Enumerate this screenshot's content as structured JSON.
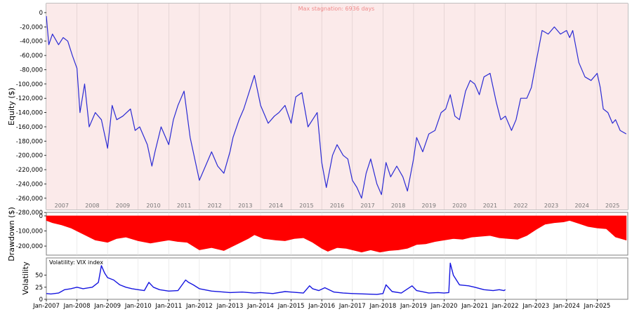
{
  "colors": {
    "equity_line": "#2b2bd4",
    "equity_bg": "#fbeaea",
    "drawdown_fill": "#ff0000",
    "volatility_line": "#1515e0",
    "grid": "#d9c9c9",
    "annotation": "#f08a8a",
    "frame": "#7f7f7f"
  },
  "chart_data": [
    {
      "type": "line",
      "ylabel": "Equity ($)",
      "annotation": "Max stagnation: 6936 days",
      "xlim": [
        2007.0,
        2026.0
      ],
      "ylim": [
        -280000,
        0
      ],
      "yticks": [
        0,
        -20000,
        -40000,
        -60000,
        -80000,
        -100000,
        -120000,
        -140000,
        -160000,
        -180000,
        -200000,
        -220000,
        -240000,
        -260000,
        -280000
      ],
      "ytick_labels": [
        "0",
        "-20,000",
        "-40,000",
        "-60,000",
        "-80,000",
        "-100,000",
        "-120,000",
        "-140,000",
        "-160,000",
        "-180,000",
        "-200,000",
        "-220,000",
        "-240,000",
        "-260,000",
        "-280,000"
      ],
      "year_labels": [
        "2007",
        "2008",
        "2009",
        "2010",
        "2011",
        "2012",
        "2013",
        "2014",
        "2015",
        "2016",
        "2017",
        "2018",
        "2019",
        "2020",
        "2021",
        "2022",
        "2023",
        "2024",
        "2025"
      ],
      "series": [
        {
          "x": [
            2007.0,
            2007.08,
            2007.2,
            2007.4,
            2007.55,
            2007.7,
            2007.85,
            2008.0,
            2008.1,
            2008.25,
            2008.4,
            2008.6,
            2008.8,
            2009.0,
            2009.15,
            2009.3,
            2009.5,
            2009.75,
            2009.9,
            2010.05,
            2010.3,
            2010.45,
            2010.55,
            2010.75,
            2011.0,
            2011.15,
            2011.3,
            2011.5,
            2011.7,
            2012.0,
            2012.2,
            2012.4,
            2012.6,
            2012.8,
            2013.0,
            2013.1,
            2013.3,
            2013.45,
            2013.6,
            2013.8,
            2014.0,
            2014.25,
            2014.45,
            2014.6,
            2014.8,
            2015.0,
            2015.15,
            2015.35,
            2015.55,
            2015.7,
            2015.85,
            2016.0,
            2016.15,
            2016.35,
            2016.5,
            2016.7,
            2016.85,
            2017.0,
            2017.15,
            2017.3,
            2017.45,
            2017.6,
            2017.8,
            2017.95,
            2018.1,
            2018.25,
            2018.45,
            2018.65,
            2018.8,
            2019.0,
            2019.1,
            2019.3,
            2019.5,
            2019.7,
            2019.9,
            2020.05,
            2020.2,
            2020.35,
            2020.5,
            2020.7,
            2020.85,
            2021.0,
            2021.15,
            2021.3,
            2021.5,
            2021.7,
            2021.85,
            2022.0,
            2022.2,
            2022.35,
            2022.5,
            2022.7,
            2022.85,
            2023.0,
            2023.2,
            2023.4,
            2023.6,
            2023.8,
            2024.0,
            2024.1,
            2024.2,
            2024.4,
            2024.6,
            2024.8,
            2025.0,
            2025.1,
            2025.2,
            2025.35,
            2025.5,
            2025.6,
            2025.75,
            2025.95
          ],
          "y": [
            -5000,
            -45000,
            -30000,
            -45000,
            -35000,
            -40000,
            -60000,
            -78000,
            -140000,
            -100000,
            -160000,
            -140000,
            -150000,
            -190000,
            -130000,
            -150000,
            -145000,
            -135000,
            -165000,
            -160000,
            -185000,
            -215000,
            -195000,
            -160000,
            -185000,
            -150000,
            -130000,
            -110000,
            -175000,
            -235000,
            -215000,
            -195000,
            -215000,
            -225000,
            -195000,
            -175000,
            -150000,
            -135000,
            -115000,
            -88000,
            -130000,
            -155000,
            -145000,
            -140000,
            -130000,
            -155000,
            -118000,
            -112000,
            -160000,
            -150000,
            -140000,
            -210000,
            -245000,
            -200000,
            -185000,
            -200000,
            -205000,
            -235000,
            -245000,
            -260000,
            -225000,
            -205000,
            -240000,
            -255000,
            -210000,
            -230000,
            -215000,
            -230000,
            -250000,
            -205000,
            -175000,
            -195000,
            -170000,
            -165000,
            -140000,
            -135000,
            -115000,
            -145000,
            -150000,
            -110000,
            -95000,
            -100000,
            -115000,
            -90000,
            -85000,
            -125000,
            -150000,
            -145000,
            -165000,
            -150000,
            -120000,
            -120000,
            -105000,
            -70000,
            -25000,
            -30000,
            -20000,
            -30000,
            -25000,
            -35000,
            -25000,
            -70000,
            -90000,
            -95000,
            -85000,
            -105000,
            -135000,
            -140000,
            -155000,
            -150000,
            -165000,
            -170000
          ]
        }
      ]
    },
    {
      "type": "area",
      "ylabel": "Drawdown ($)",
      "xlim": [
        2007.0,
        2026.0
      ],
      "ylim": [
        -260000,
        0
      ],
      "yticks": [
        0,
        -100000,
        -200000
      ],
      "ytick_labels": [
        "0",
        "-100,000",
        "-200,000"
      ],
      "series": [
        {
          "x": [
            2007.0,
            2007.2,
            2007.5,
            2007.8,
            2008.0,
            2008.3,
            2008.6,
            2009.0,
            2009.3,
            2009.6,
            2010.0,
            2010.4,
            2010.7,
            2011.0,
            2011.3,
            2011.6,
            2012.0,
            2012.4,
            2012.8,
            2013.0,
            2013.3,
            2013.6,
            2013.8,
            2014.1,
            2014.5,
            2014.8,
            2015.1,
            2015.4,
            2015.7,
            2016.0,
            2016.2,
            2016.5,
            2016.8,
            2017.0,
            2017.3,
            2017.6,
            2017.9,
            2018.2,
            2018.5,
            2018.8,
            2019.1,
            2019.4,
            2019.7,
            2020.0,
            2020.3,
            2020.6,
            2020.9,
            2021.2,
            2021.5,
            2021.8,
            2022.1,
            2022.4,
            2022.7,
            2023.0,
            2023.3,
            2023.6,
            2023.9,
            2024.1,
            2024.4,
            2024.7,
            2025.0,
            2025.3,
            2025.6,
            2025.95
          ],
          "y": [
            -30000,
            -45000,
            -60000,
            -80000,
            -100000,
            -130000,
            -160000,
            -175000,
            -150000,
            -140000,
            -165000,
            -180000,
            -170000,
            -160000,
            -170000,
            -175000,
            -225000,
            -210000,
            -230000,
            -210000,
            -180000,
            -150000,
            -125000,
            -150000,
            -160000,
            -165000,
            -150000,
            -145000,
            -175000,
            -215000,
            -235000,
            -210000,
            -215000,
            -225000,
            -240000,
            -225000,
            -240000,
            -230000,
            -225000,
            -215000,
            -190000,
            -185000,
            -170000,
            -160000,
            -150000,
            -155000,
            -140000,
            -135000,
            -130000,
            -145000,
            -150000,
            -155000,
            -130000,
            -90000,
            -55000,
            -45000,
            -40000,
            -30000,
            -50000,
            -70000,
            -80000,
            -85000,
            -140000,
            -160000
          ]
        }
      ]
    },
    {
      "type": "line",
      "ylabel": "Volatility",
      "legend": "Volatility: VIX index",
      "xlim": [
        2007.0,
        2026.0
      ],
      "ylim": [
        0,
        80
      ],
      "yticks": [
        0,
        25,
        50
      ],
      "ytick_labels": [
        "0",
        "25",
        "50"
      ],
      "x_tick_labels": [
        "Jan-2007",
        "Jan-2008",
        "Jan-2009",
        "Jan-2010",
        "Jan-2011",
        "Jan-2012",
        "Jan-2013",
        "Jan-2014",
        "Jan-2015",
        "Jan-2016",
        "Jan-2017",
        "Jan-2018",
        "Jan-2019",
        "Jan-2020",
        "Jan-2021",
        "Jan-2022",
        "Jan-2023",
        "Jan-2024",
        "Jan-2025"
      ],
      "series": [
        {
          "name": "Volatility: VIX index",
          "x": [
            2007.0,
            2007.15,
            2007.4,
            2007.6,
            2007.8,
            2008.0,
            2008.2,
            2008.5,
            2008.7,
            2008.8,
            2008.9,
            2009.0,
            2009.2,
            2009.4,
            2009.6,
            2009.8,
            2010.0,
            2010.2,
            2010.35,
            2010.5,
            2010.7,
            2011.0,
            2011.3,
            2011.55,
            2011.65,
            2011.8,
            2012.0,
            2012.4,
            2012.8,
            2013.0,
            2013.4,
            2013.8,
            2014.0,
            2014.4,
            2014.8,
            2015.0,
            2015.4,
            2015.6,
            2015.7,
            2015.9,
            2016.1,
            2016.4,
            2016.7,
            2017.0,
            2017.4,
            2017.8,
            2018.0,
            2018.1,
            2018.3,
            2018.6,
            2018.95,
            2019.1,
            2019.5,
            2019.8,
            2020.0,
            2020.15,
            2020.2,
            2020.3,
            2020.5,
            2020.8,
            2021.0,
            2021.3,
            2021.6,
            2021.8,
            2021.95,
            2022.0
          ],
          "y": [
            12,
            11,
            13,
            20,
            22,
            25,
            22,
            25,
            35,
            70,
            55,
            45,
            40,
            30,
            25,
            22,
            20,
            18,
            35,
            25,
            20,
            17,
            18,
            40,
            35,
            30,
            22,
            17,
            15,
            14,
            15,
            13,
            14,
            12,
            16,
            15,
            13,
            28,
            22,
            18,
            24,
            15,
            13,
            12,
            11,
            10,
            12,
            30,
            16,
            13,
            28,
            18,
            13,
            14,
            13,
            14,
            75,
            50,
            30,
            28,
            25,
            20,
            18,
            20,
            18,
            20
          ]
        }
      ]
    }
  ]
}
